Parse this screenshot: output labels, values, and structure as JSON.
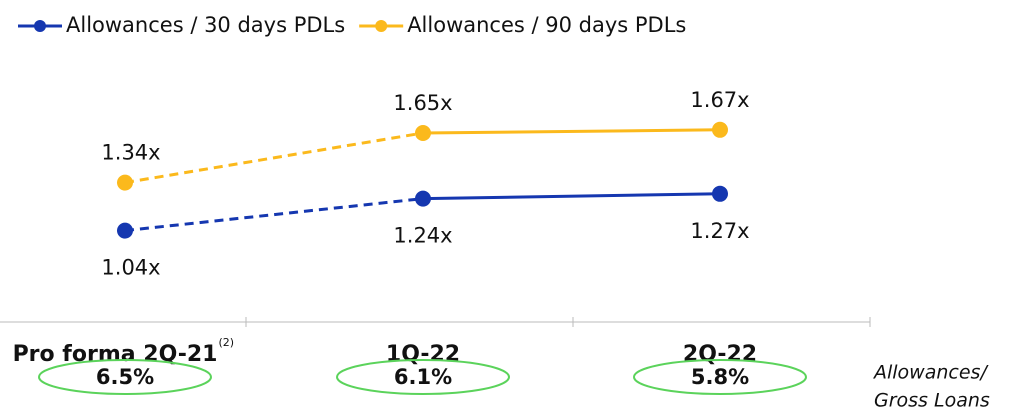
{
  "chart_data": {
    "type": "line",
    "categories": [
      "Pro forma 2Q-21",
      "1Q-22",
      "2Q-22"
    ],
    "category_superscripts": [
      "(2)",
      null,
      null
    ],
    "series": [
      {
        "name": "Allowances / 30 days PDLs",
        "color": "#1537b0",
        "values": [
          1.04,
          1.24,
          1.27
        ],
        "value_labels": [
          "1.04x",
          "1.24x",
          "1.27x"
        ]
      },
      {
        "name": "Allowances / 90 days PDLs",
        "color": "#fbb91c",
        "values": [
          1.34,
          1.65,
          1.67
        ],
        "value_labels": [
          "1.34x",
          "1.65x",
          "1.67x"
        ]
      }
    ],
    "ratio_label": [
      "Allowances/",
      "Gross Loans"
    ],
    "ratio_values": [
      6.5,
      6.1,
      5.8
    ],
    "ratio_value_labels": [
      "6.5%",
      "6.1%",
      "5.8%"
    ],
    "ratio_color": "#5bd35b"
  }
}
